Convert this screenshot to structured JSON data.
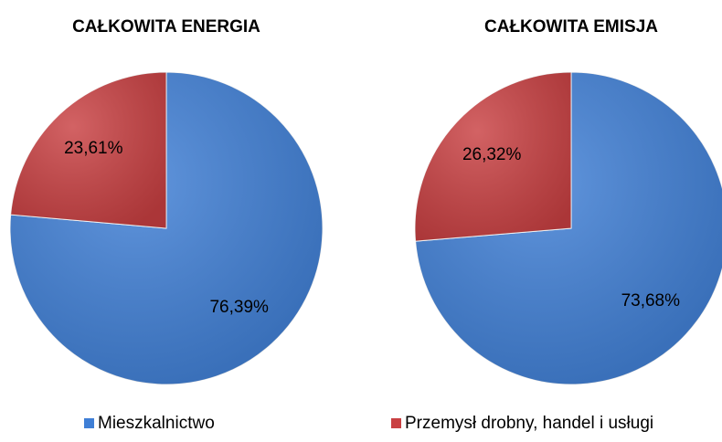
{
  "chart_data": [
    {
      "type": "pie",
      "title": "CAŁKOWITA ENERGIA",
      "categories": [
        "Mieszkalnictwo",
        "Przemysł drobny, handel i usługi"
      ],
      "values": [
        76.39,
        23.61
      ],
      "value_labels": [
        "76,39%",
        "23,61%"
      ],
      "colors": [
        "#3f7fd6",
        "#c94042"
      ]
    },
    {
      "type": "pie",
      "title": "CAŁKOWITA EMISJA",
      "categories": [
        "Mieszkalnictwo",
        "Przemysł drobny, handel i usługi"
      ],
      "values": [
        73.68,
        26.32
      ],
      "value_labels": [
        "73,68%",
        "26,32%"
      ],
      "colors": [
        "#3f7fd6",
        "#c94042"
      ]
    }
  ]
}
